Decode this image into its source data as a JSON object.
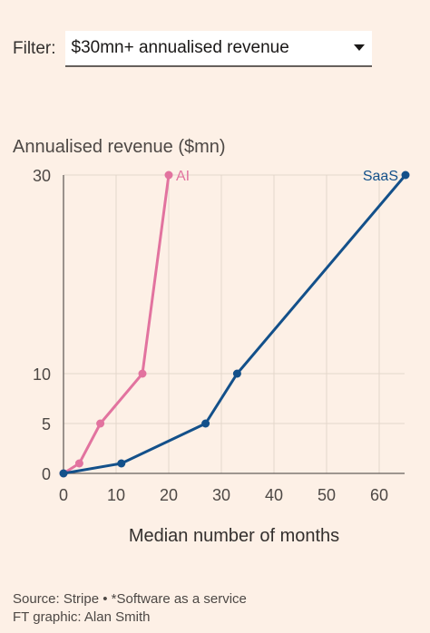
{
  "filter": {
    "label": "Filter:",
    "selected": "$30mn+ annualised revenue",
    "icon": "chevron-down-icon"
  },
  "chart_data": {
    "type": "line",
    "title": "",
    "ylabel": "Annualised revenue ($mn)",
    "xlabel": "Median number of months",
    "xlim": [
      0,
      65
    ],
    "y_ticks": [
      0,
      5,
      10,
      30
    ],
    "x_ticks": [
      0,
      10,
      20,
      30,
      40,
      50,
      60
    ],
    "y_scale": "piecewise (0-10 linear, 10-30 compressed)",
    "grid": "vertical gridlines",
    "series": [
      {
        "name": "AI",
        "color": "#e2739f",
        "x": [
          0,
          3,
          7,
          15,
          20
        ],
        "y": [
          0,
          1,
          5,
          10,
          30
        ]
      },
      {
        "name": "SaaS",
        "color": "#13508a",
        "x": [
          0,
          11,
          27,
          33,
          65
        ],
        "y": [
          0,
          1,
          5,
          10,
          30
        ]
      }
    ]
  },
  "footer": {
    "source": "Source: Stripe • *Software as a service",
    "credit": "FT graphic: Alan Smith"
  }
}
